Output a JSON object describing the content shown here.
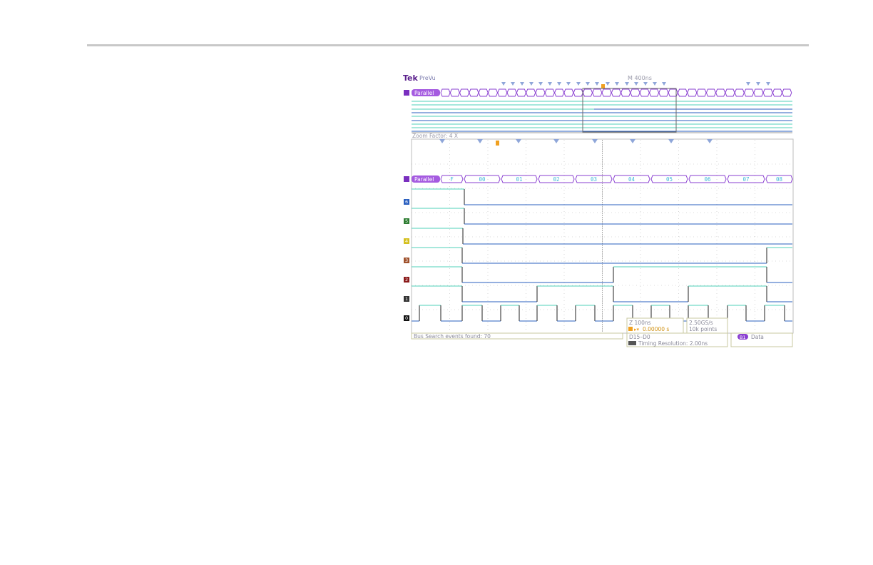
{
  "header": {
    "brand": "Tek",
    "mode": "PreVu",
    "timebase": "M 400ns"
  },
  "overview": {
    "bus_badge": "B1",
    "bus_label": "Parallel"
  },
  "zoom": {
    "factor_text": "Zoom Factor: 4 X",
    "bus_badge": "B1",
    "bus_label": "Parallel"
  },
  "bus_values": [
    "F",
    "00",
    "01",
    "02",
    "03",
    "04",
    "05",
    "06",
    "07",
    "08"
  ],
  "channels": [
    {
      "label": "6"
    },
    {
      "label": "5"
    },
    {
      "label": "4"
    },
    {
      "label": "3"
    },
    {
      "label": "2"
    },
    {
      "label": "1"
    },
    {
      "label": "0"
    }
  ],
  "status": {
    "zoom_scale": "Z 100ns",
    "trigger_pos": "0.00000 s",
    "sample_rate": "2.50GS/s",
    "record_length": "10k points",
    "search_events": "Bus Search events found: 70",
    "channel_range": "D15–D0",
    "timing_resolution": "Timing Resolution: 2.00ns",
    "bus_badge": "B1",
    "bus_trigger_type": "Data"
  },
  "colors": {
    "bus": "#8a3fd1",
    "trace_teal": "#4fd0b8",
    "trace_blue": "#2a5fbf",
    "search_marker": "#8fa6d9",
    "trigger": "#f0a020",
    "grid": "#b8b8b8"
  }
}
